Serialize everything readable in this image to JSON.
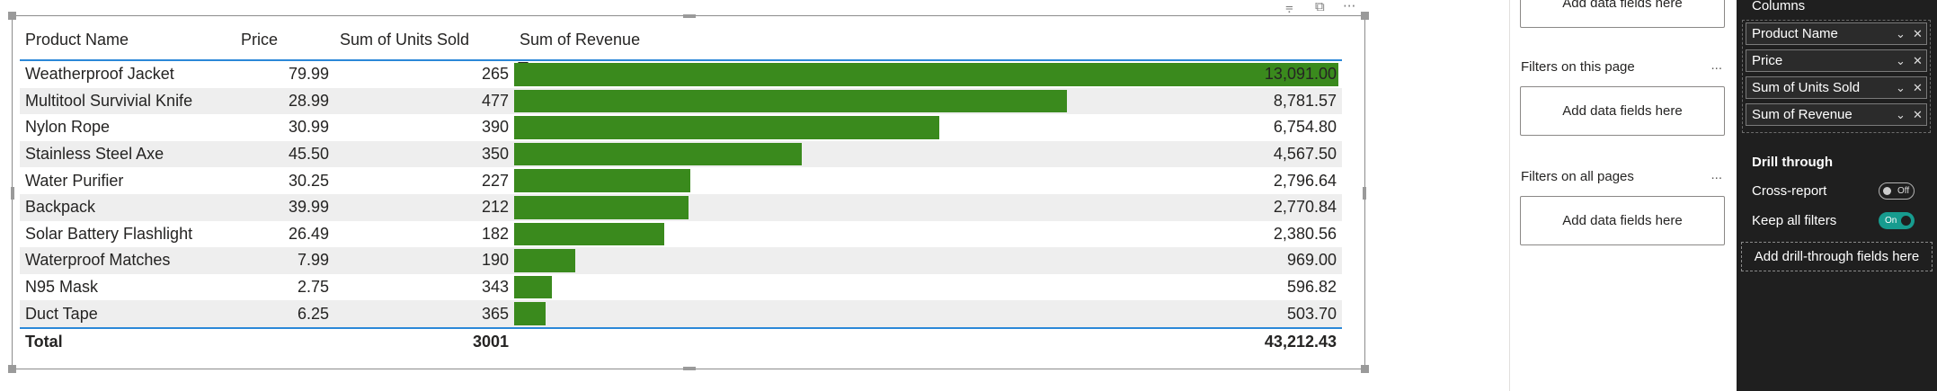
{
  "table": {
    "columns": [
      "Product Name",
      "Price",
      "Sum of Units Sold",
      "Sum of Revenue"
    ],
    "rows": [
      {
        "name": "Weatherproof Jacket",
        "price": "79.99",
        "units": "265",
        "revenue": "13,091.00",
        "revenue_value": 13091.0
      },
      {
        "name": "Multitool Survivial Knife",
        "price": "28.99",
        "units": "477",
        "revenue": "8,781.57",
        "revenue_value": 8781.57
      },
      {
        "name": "Nylon Rope",
        "price": "30.99",
        "units": "390",
        "revenue": "6,754.80",
        "revenue_value": 6754.8
      },
      {
        "name": "Stainless Steel Axe",
        "price": "45.50",
        "units": "350",
        "revenue": "4,567.50",
        "revenue_value": 4567.5
      },
      {
        "name": "Water Purifier",
        "price": "30.25",
        "units": "227",
        "revenue": "2,796.64",
        "revenue_value": 2796.64
      },
      {
        "name": "Backpack",
        "price": "39.99",
        "units": "212",
        "revenue": "2,770.84",
        "revenue_value": 2770.84
      },
      {
        "name": "Solar Battery Flashlight",
        "price": "26.49",
        "units": "182",
        "revenue": "2,380.56",
        "revenue_value": 2380.56
      },
      {
        "name": "Waterproof Matches",
        "price": "7.99",
        "units": "190",
        "revenue": "969.00",
        "revenue_value": 969.0
      },
      {
        "name": "N95 Mask",
        "price": "2.75",
        "units": "343",
        "revenue": "596.82",
        "revenue_value": 596.82
      },
      {
        "name": "Duct Tape",
        "price": "6.25",
        "units": "365",
        "revenue": "503.70",
        "revenue_value": 503.7
      }
    ],
    "total": {
      "label": "Total",
      "units": "3001",
      "revenue": "43,212.43"
    },
    "bar_color": "#3a8a1d",
    "header_rule_color": "#2b88d8"
  },
  "visual_controls": {
    "filter_icon": "filter-icon",
    "focus_icon": "focus-mode-icon",
    "more_icon": "more-options-icon"
  },
  "filters": {
    "top_drop_label": "Add data fields here",
    "page_heading": "Filters on this page",
    "page_drop_label": "Add data fields here",
    "all_heading": "Filters on all pages",
    "all_drop_label": "Add data fields here",
    "more_glyph": "..."
  },
  "fields": {
    "columns_heading": "Columns",
    "items": [
      "Product Name",
      "Price",
      "Sum of Units Sold",
      "Sum of Revenue"
    ],
    "drill_title": "Drill through",
    "cross_report_label": "Cross-report",
    "cross_report_state": "Off",
    "keep_filters_label": "Keep all filters",
    "keep_filters_state": "On",
    "drill_drop_label": "Add drill-through fields here",
    "accent_color": "#179c8f"
  }
}
